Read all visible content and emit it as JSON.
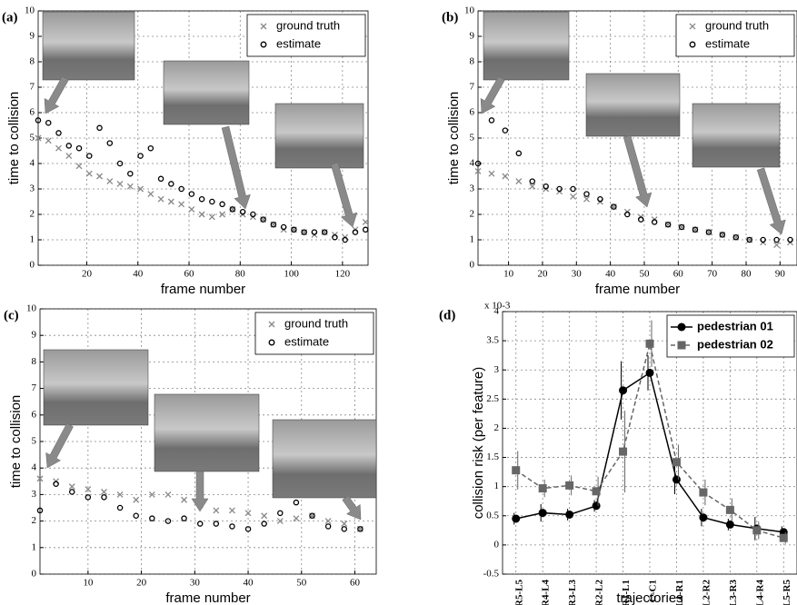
{
  "chart_data": [
    {
      "type": "scatter",
      "panel_label": "(a)",
      "x_label": "frame number",
      "y_label": "time to collision",
      "x": [
        1,
        5,
        9,
        13,
        17,
        21,
        25,
        29,
        33,
        37,
        41,
        45,
        49,
        53,
        57,
        61,
        65,
        69,
        73,
        77,
        81,
        85,
        89,
        93,
        97,
        101,
        105,
        109,
        113,
        117,
        121,
        125,
        129
      ],
      "series": [
        {
          "name": "ground truth",
          "marker": "x",
          "color": "#888888",
          "values": [
            5.0,
            4.9,
            4.6,
            4.3,
            3.9,
            3.6,
            3.5,
            3.3,
            3.2,
            3.1,
            3.0,
            2.8,
            2.6,
            2.5,
            2.4,
            2.2,
            2.0,
            1.9,
            2.0,
            2.2,
            2.0,
            1.9,
            1.8,
            1.6,
            1.4,
            1.4,
            1.3,
            1.2,
            1.3,
            1.2,
            1.1,
            1.4,
            1.7
          ]
        },
        {
          "name": "estimate",
          "marker": "o",
          "color": "#000000",
          "values": [
            5.7,
            5.6,
            5.2,
            4.7,
            4.6,
            4.3,
            5.4,
            4.8,
            4.0,
            3.6,
            4.3,
            4.6,
            3.4,
            3.2,
            3.0,
            2.8,
            2.6,
            2.5,
            2.4,
            2.2,
            2.1,
            2.0,
            1.8,
            1.6,
            1.5,
            1.4,
            1.3,
            1.3,
            1.3,
            1.1,
            1.0,
            1.3,
            1.4
          ]
        }
      ],
      "xlim": [
        1,
        130
      ],
      "ylim": [
        0,
        10
      ],
      "xticks": [
        20,
        40,
        60,
        80,
        100,
        120
      ],
      "yticks": [
        0,
        1,
        2,
        3,
        4,
        5,
        6,
        7,
        8,
        9,
        10
      ],
      "grid": true,
      "legend": "upper right"
    },
    {
      "type": "scatter",
      "panel_label": "(b)",
      "x_label": "frame number",
      "y_label": "time to collision",
      "x": [
        1,
        5,
        9,
        13,
        17,
        21,
        25,
        29,
        33,
        37,
        41,
        45,
        49,
        53,
        57,
        61,
        65,
        69,
        73,
        77,
        81,
        85,
        89,
        93
      ],
      "series": [
        {
          "name": "ground truth",
          "marker": "x",
          "color": "#888888",
          "values": [
            3.7,
            3.6,
            3.5,
            3.3,
            3.1,
            3.0,
            2.9,
            2.7,
            2.6,
            2.5,
            2.3,
            2.1,
            1.9,
            1.8,
            1.6,
            1.5,
            1.4,
            1.3,
            1.2,
            1.1,
            1.0,
            0.9,
            0.8,
            0.9
          ]
        },
        {
          "name": "estimate",
          "marker": "o",
          "color": "#000000",
          "values": [
            4.0,
            5.7,
            5.3,
            4.4,
            3.3,
            3.1,
            3.0,
            3.0,
            2.8,
            2.6,
            2.3,
            2.0,
            1.8,
            1.7,
            1.6,
            1.5,
            1.4,
            1.3,
            1.2,
            1.1,
            1.0,
            1.0,
            1.0,
            1.0
          ]
        }
      ],
      "xlim": [
        1,
        95
      ],
      "ylim": [
        0,
        10
      ],
      "xticks": [
        10,
        20,
        30,
        40,
        50,
        60,
        70,
        80,
        90
      ],
      "yticks": [
        0,
        1,
        2,
        3,
        4,
        5,
        6,
        7,
        8,
        9,
        10
      ],
      "grid": true,
      "legend": "upper right"
    },
    {
      "type": "scatter",
      "panel_label": "(c)",
      "x_label": "frame number",
      "y_label": "time to collision",
      "x": [
        1,
        4,
        7,
        10,
        13,
        16,
        19,
        22,
        25,
        28,
        31,
        34,
        37,
        40,
        43,
        46,
        49,
        52,
        55,
        58,
        61
      ],
      "series": [
        {
          "name": "ground truth",
          "marker": "x",
          "color": "#888888",
          "values": [
            3.6,
            3.5,
            3.3,
            3.2,
            3.1,
            3.0,
            2.8,
            3.0,
            3.0,
            2.8,
            2.6,
            2.4,
            2.4,
            2.3,
            2.2,
            2.0,
            2.1,
            2.2,
            2.0,
            1.9,
            1.7
          ]
        },
        {
          "name": "estimate",
          "marker": "o",
          "color": "#000000",
          "values": [
            2.4,
            3.4,
            3.1,
            2.9,
            2.9,
            2.5,
            2.2,
            2.1,
            2.0,
            2.1,
            1.9,
            1.9,
            1.8,
            1.7,
            1.9,
            2.3,
            2.7,
            2.2,
            1.8,
            1.7,
            1.7
          ]
        }
      ],
      "xlim": [
        1,
        64
      ],
      "ylim": [
        0,
        10
      ],
      "xticks": [
        10,
        20,
        30,
        40,
        50,
        60
      ],
      "yticks": [
        0,
        1,
        2,
        3,
        4,
        5,
        6,
        7,
        8,
        9,
        10
      ],
      "grid": true,
      "legend": "upper right"
    },
    {
      "type": "errorbar",
      "panel_label": "(d)",
      "x_label": "trajectories",
      "y_label": "collision risk (per feature)",
      "scale_label": "x 10-3",
      "categories": [
        "R5-L5",
        "R4-L4",
        "R3-L3",
        "R2-L2",
        "R1-L1",
        "C-C1",
        "L1-R1",
        "L2-R2",
        "L3-R3",
        "L4-R4",
        "L5-R5"
      ],
      "series": [
        {
          "name": "pedestrian 01",
          "marker": "circle",
          "dashed": false,
          "color": "#000000",
          "values": [
            0.45,
            0.55,
            0.52,
            0.67,
            2.65,
            2.95,
            1.12,
            0.47,
            0.35,
            0.28,
            0.22
          ],
          "errors": [
            0.1,
            0.15,
            0.1,
            0.1,
            0.5,
            0.3,
            0.25,
            0.15,
            0.1,
            0.2,
            0.1
          ]
        },
        {
          "name": "pedestrian 02",
          "marker": "square",
          "dashed": true,
          "color": "#666666",
          "values": [
            1.28,
            0.97,
            1.02,
            0.92,
            1.6,
            3.45,
            1.42,
            0.9,
            0.6,
            0.25,
            0.12
          ],
          "errors": [
            0.33,
            0.15,
            0.17,
            0.25,
            0.7,
            0.4,
            0.3,
            0.22,
            0.2,
            0.15,
            0.1
          ]
        }
      ],
      "ylim": [
        -0.5,
        4
      ],
      "yticks": [
        -0.5,
        0,
        0.5,
        1,
        1.5,
        2,
        2.5,
        3,
        3.5,
        4
      ],
      "grid": true,
      "legend": "upper right"
    }
  ]
}
